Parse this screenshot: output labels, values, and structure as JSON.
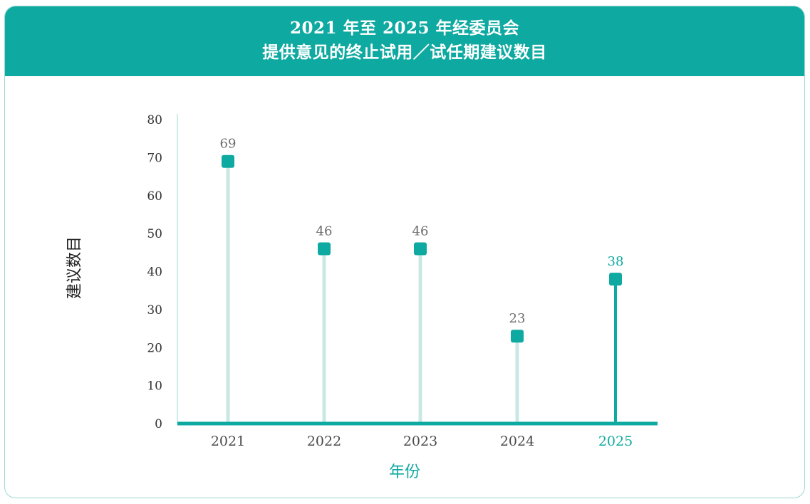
{
  "header": {
    "title_line1": "2021 年至 2025 年经委员会",
    "title_line2": "提供意见的终止试用／试任期建议数目"
  },
  "colors": {
    "accent": "#0ea9a0",
    "stem_light": "#c9e8e5",
    "text_dark": "#333333",
    "value_gray": "#6b6b6b"
  },
  "chart_data": {
    "type": "lollipop",
    "categories": [
      "2021",
      "2022",
      "2023",
      "2024",
      "2025"
    ],
    "values": [
      69,
      46,
      46,
      23,
      38
    ],
    "highlight_index": 4,
    "ylabel": "建议数目",
    "xlabel": "年份",
    "ylim": [
      0,
      80
    ],
    "yticks": [
      0,
      10,
      20,
      30,
      40,
      50,
      60,
      70,
      80
    ],
    "grid": false,
    "legend": "none"
  }
}
